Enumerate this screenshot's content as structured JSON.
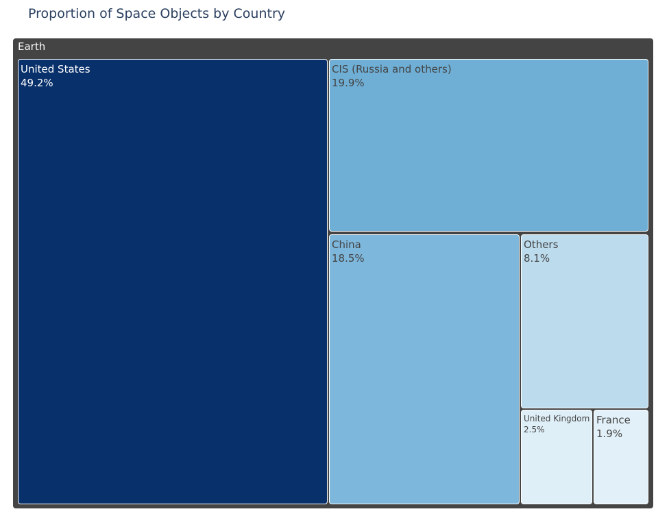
{
  "chart_data": {
    "type": "treemap",
    "title": "Proportion of Space Objects by Country",
    "root": "Earth",
    "items": [
      {
        "label": "United States",
        "value": 49.2,
        "text": "49.2%",
        "color": "#08306b",
        "text_color": "#ffffff"
      },
      {
        "label": "CIS (Russia and others)",
        "value": 19.9,
        "text": "19.9%",
        "color": "#6fafd6",
        "text_color": "#444444"
      },
      {
        "label": "China",
        "value": 18.5,
        "text": "18.5%",
        "color": "#7db7dc",
        "text_color": "#444444"
      },
      {
        "label": "Others",
        "value": 8.1,
        "text": "8.1%",
        "color": "#bcdcee",
        "text_color": "#444444"
      },
      {
        "label": "United Kingdom",
        "value": 2.5,
        "text": "2.5%",
        "color": "#dfeff8",
        "text_color": "#444444"
      },
      {
        "label": "France",
        "value": 1.9,
        "text": "1.9%",
        "color": "#e2f1f9",
        "text_color": "#444444"
      }
    ]
  }
}
